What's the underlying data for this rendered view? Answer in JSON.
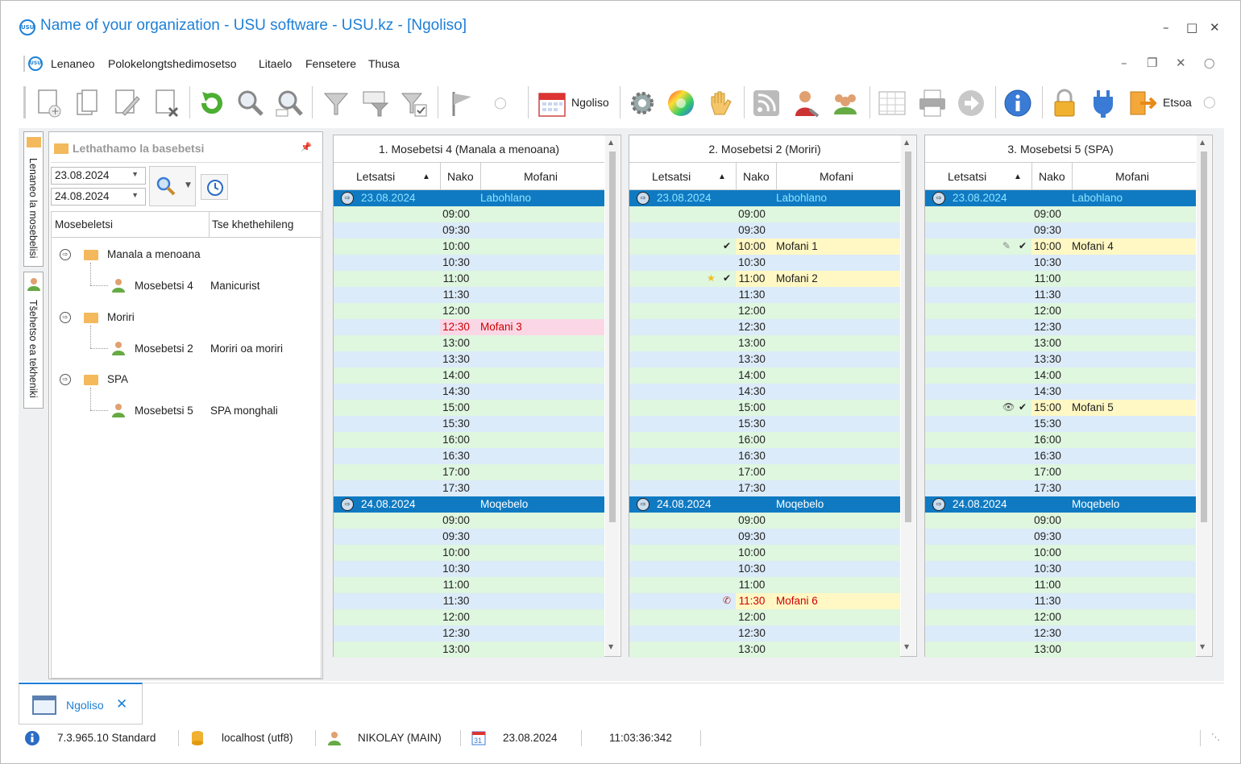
{
  "window": {
    "title": "Name of your organization - USU software - USU.kz - [Ngoliso]",
    "logo": "USU"
  },
  "menu": {
    "items": [
      "Lenaneo",
      "Polokelongtshedimosetso",
      "Litaelo",
      "Fensetere",
      "Thusa"
    ]
  },
  "toolbar": {
    "report_label": "Ngoliso",
    "exit_label": "Etsoa"
  },
  "vtabs": [
    "Lenaneo la mosebelisi",
    "Tšehetso ea tekheniki"
  ],
  "left_panel": {
    "title": "Lethathamo la basebetsi",
    "date_from": "23.08.2024",
    "date_to": "24.08.2024",
    "col_employee": "Mosebeletsi",
    "col_specialty": "Tse khethehileng",
    "groups": [
      {
        "name": "Manala a menoana",
        "employee": "Mosebetsi 4",
        "specialty": "Manicurist"
      },
      {
        "name": "Moriri",
        "employee": "Mosebetsi 2",
        "specialty": "Moriri oa moriri"
      },
      {
        "name": "SPA",
        "employee": "Mosebetsi 5",
        "specialty": "SPA monghali"
      }
    ]
  },
  "schedule_cols": {
    "c1": "Letsatsi",
    "c2": "Nako",
    "c3": "Mofani"
  },
  "schedules": [
    {
      "title": "1. Mosebetsi 4 (Manala a menoana)",
      "day1": {
        "date": "23.08.2024",
        "weekday": "Labohlano"
      },
      "day2": {
        "date": "24.08.2024",
        "weekday": "Moqebelo"
      },
      "events": {
        "12:30": "Mofani 3"
      }
    },
    {
      "title": "2. Mosebetsi 2 (Moriri)",
      "day1": {
        "date": "23.08.2024",
        "weekday": "Labohlano"
      },
      "day2": {
        "date": "24.08.2024",
        "weekday": "Moqebelo"
      },
      "events": {
        "10:00": "Mofani 1",
        "11:00": "Mofani 2"
      },
      "events2": {
        "11:30": "Mofani 6"
      }
    },
    {
      "title": "3. Mosebetsi 5 (SPA)",
      "day1": {
        "date": "23.08.2024",
        "weekday": "Labohlano"
      },
      "day2": {
        "date": "24.08.2024",
        "weekday": "Moqebelo"
      },
      "events": {
        "10:00": "Mofani 4",
        "15:00": "Mofani 5"
      }
    }
  ],
  "times_day1": [
    "09:00",
    "09:30",
    "10:00",
    "10:30",
    "11:00",
    "11:30",
    "12:00",
    "12:30",
    "13:00",
    "13:30",
    "14:00",
    "14:30",
    "15:00",
    "15:30",
    "16:00",
    "16:30",
    "17:00",
    "17:30"
  ],
  "times_day2": [
    "09:00",
    "09:30",
    "10:00",
    "10:30",
    "11:00",
    "11:30",
    "12:00",
    "12:30",
    "13:00"
  ],
  "bottom_tab": {
    "label": "Ngoliso"
  },
  "status": {
    "version": "7.3.965.10 Standard",
    "db": "localhost (utf8)",
    "user": "NIKOLAY (MAIN)",
    "date": "23.08.2024",
    "time": "11:03:36:342"
  }
}
